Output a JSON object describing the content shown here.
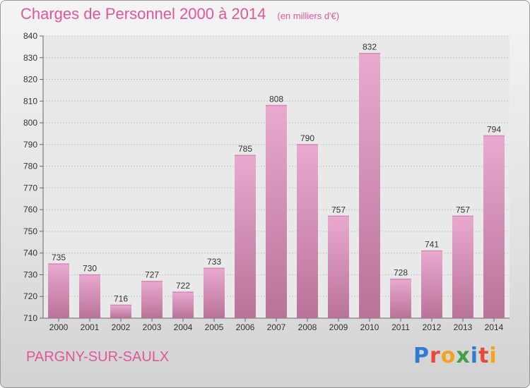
{
  "header": {
    "title": "Charges de Personnel 2000 à 2014",
    "subtitle": "(en milliers d'€)"
  },
  "footer": {
    "commune": "PARGNY-SUR-SAULX",
    "logo_text": "Proxiti"
  },
  "colors": {
    "title": "#e0569a",
    "bar_light": "#e9a9cf",
    "bar_dark": "#b97298",
    "grid": "#c8c8c8"
  },
  "chart_data": {
    "type": "bar",
    "title": "Charges de Personnel 2000 à 2014",
    "subtitle": "(en milliers d'€)",
    "xlabel": "",
    "ylabel": "",
    "categories": [
      "2000",
      "2001",
      "2002",
      "2003",
      "2004",
      "2005",
      "2006",
      "2007",
      "2008",
      "2009",
      "2010",
      "2011",
      "2012",
      "2013",
      "2014"
    ],
    "values": [
      735,
      730,
      716,
      727,
      722,
      733,
      785,
      808,
      790,
      757,
      832,
      728,
      741,
      757,
      794
    ],
    "ylim": [
      710,
      840
    ],
    "yticks": [
      710,
      720,
      730,
      740,
      750,
      760,
      770,
      780,
      790,
      800,
      810,
      820,
      830,
      840
    ],
    "grid": true,
    "data_labels": true,
    "legend": "none"
  }
}
